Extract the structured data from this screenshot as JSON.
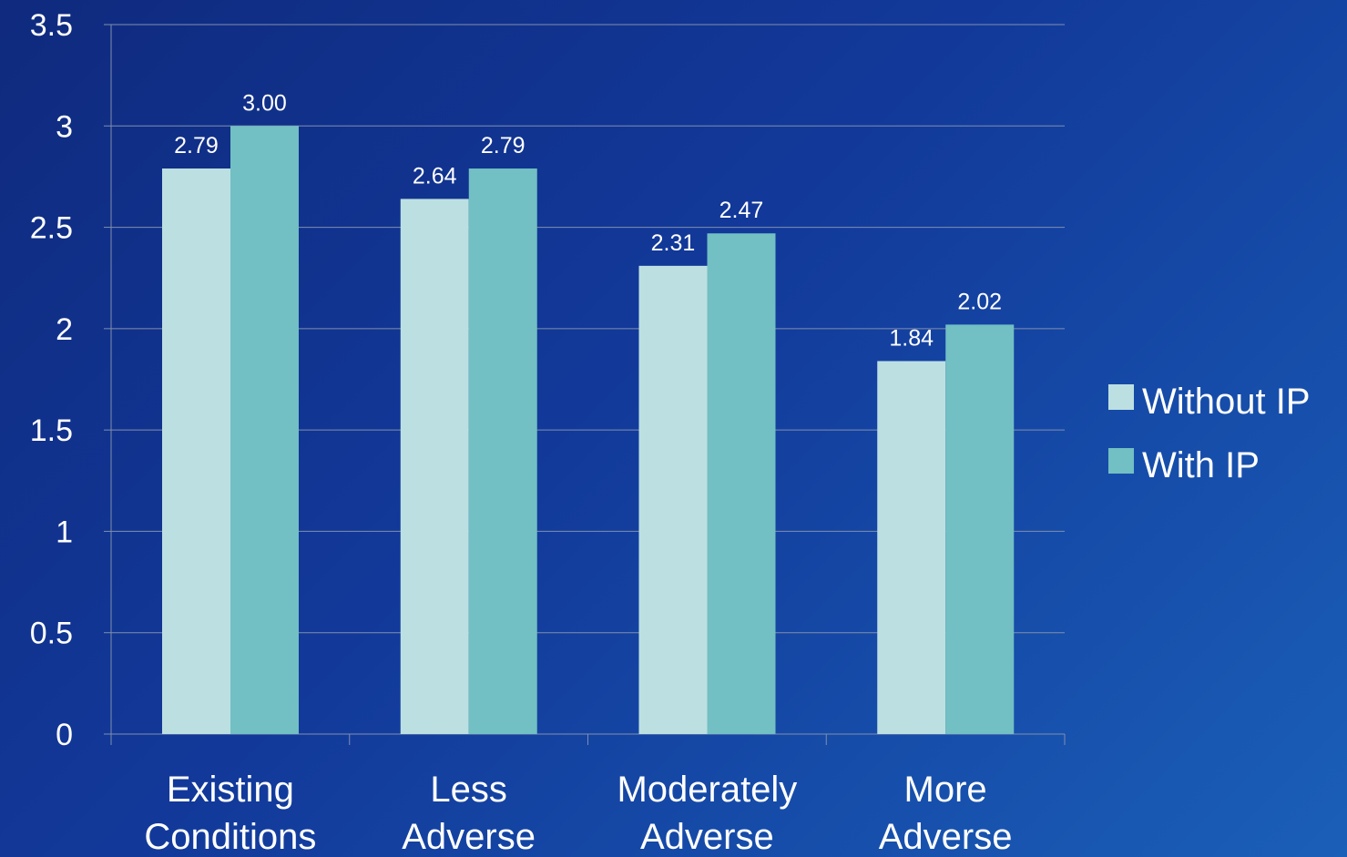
{
  "colors": {
    "background_start": "#0f2a7e",
    "background_end": "#1a5fb8",
    "gridline": "#7f8fae",
    "text": "#ffffff"
  },
  "chart_data": {
    "type": "bar",
    "categories": [
      [
        "Existing",
        "Conditions"
      ],
      [
        "Less",
        "Adverse"
      ],
      [
        "Moderately",
        "Adverse"
      ],
      [
        "More",
        "Adverse"
      ]
    ],
    "series": [
      {
        "name": "Without IP",
        "color": "#bce0e2",
        "values": [
          2.79,
          2.64,
          2.31,
          1.84
        ],
        "labels": [
          "2.79",
          "2.64",
          "2.31",
          "1.84"
        ]
      },
      {
        "name": "With IP",
        "color": "#72bfc4",
        "values": [
          3.0,
          2.79,
          2.47,
          2.02
        ],
        "labels": [
          "3.00",
          "2.79",
          "2.47",
          "2.02"
        ]
      }
    ],
    "ylim": [
      0,
      3.5
    ],
    "yticks": [
      0,
      0.5,
      1,
      1.5,
      2,
      2.5,
      3,
      3.5
    ],
    "ytick_labels": [
      "0",
      "0.5",
      "1",
      "1.5",
      "2",
      "2.5",
      "3",
      "3.5"
    ],
    "grid": true,
    "legend_position": "right"
  }
}
